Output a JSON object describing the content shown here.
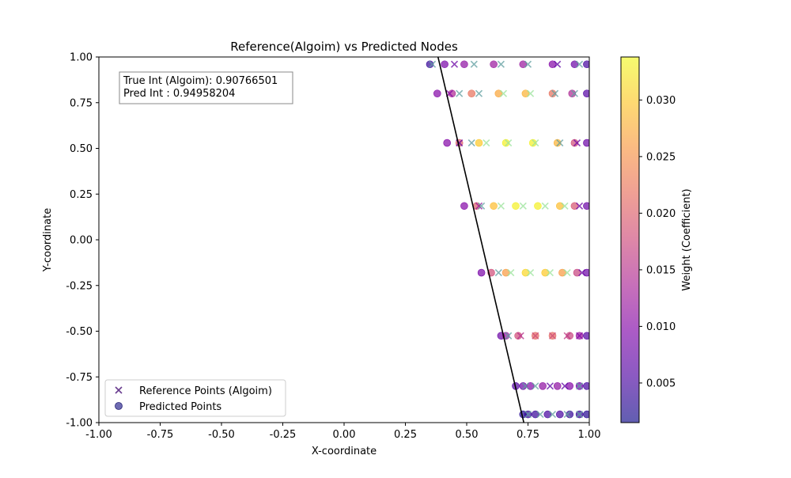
{
  "chart_data": {
    "type": "scatter",
    "title": "Reference(Algoim) vs Predicted Nodes",
    "xlabel": "X-coordinate",
    "ylabel": "Y-coordinate",
    "xlim": [
      -1.0,
      1.0
    ],
    "ylim": [
      -1.0,
      1.0
    ],
    "xticks": [
      "-1.00",
      "-0.75",
      "-0.50",
      "-0.25",
      "0.00",
      "0.25",
      "0.50",
      "0.75",
      "1.00"
    ],
    "yticks": [
      "-1.00",
      "-0.75",
      "-0.50",
      "-0.25",
      "0.00",
      "0.25",
      "0.50",
      "0.75",
      "1.00"
    ],
    "grid": false,
    "legend": {
      "placement": "lower-left",
      "entries": [
        "Reference Points (Algoim)",
        "Predicted Points"
      ]
    },
    "annotation": {
      "line1": "True Int (Algoim): 0.90766501",
      "line2": "Pred Int : 0.94958204"
    },
    "colorbar": {
      "label": "Weight (Coefficient)",
      "colormap": "plasma",
      "range": [
        0.0015,
        0.0338
      ],
      "ticks": [
        "0.005",
        "0.010",
        "0.015",
        "0.020",
        "0.025",
        "0.030"
      ],
      "tick_values": [
        0.005,
        0.01,
        0.015,
        0.02,
        0.025,
        0.03
      ]
    },
    "boundary_line": {
      "x": [
        0.383,
        0.733
      ],
      "y": [
        1.0,
        -1.0
      ],
      "color": "#000000"
    },
    "series": [
      {
        "name": "Reference Points (Algoim)",
        "marker": "x",
        "points": [
          {
            "x": 0.36,
            "y": 0.96,
            "w": 0.006
          },
          {
            "x": 0.45,
            "y": 0.96,
            "w": 0.008
          },
          {
            "x": 0.53,
            "y": 0.96,
            "w": 0.006
          },
          {
            "x": 0.64,
            "y": 0.96,
            "w": 0.005
          },
          {
            "x": 0.75,
            "y": 0.96,
            "w": 0.005
          },
          {
            "x": 0.87,
            "y": 0.96,
            "w": 0.007
          },
          {
            "x": 0.96,
            "y": 0.96,
            "w": 0.006
          },
          {
            "x": 0.43,
            "y": 0.8,
            "w": 0.01
          },
          {
            "x": 0.47,
            "y": 0.8,
            "w": 0.005
          },
          {
            "x": 0.55,
            "y": 0.8,
            "w": 0.004
          },
          {
            "x": 0.65,
            "y": 0.8,
            "w": 0.029
          },
          {
            "x": 0.76,
            "y": 0.8,
            "w": 0.03
          },
          {
            "x": 0.86,
            "y": 0.8,
            "w": 0.004
          },
          {
            "x": 0.94,
            "y": 0.8,
            "w": 0.006
          },
          {
            "x": 0.47,
            "y": 0.53,
            "w": 0.007
          },
          {
            "x": 0.52,
            "y": 0.53,
            "w": 0.004
          },
          {
            "x": 0.58,
            "y": 0.53,
            "w": 0.028
          },
          {
            "x": 0.67,
            "y": 0.53,
            "w": 0.033
          },
          {
            "x": 0.78,
            "y": 0.53,
            "w": 0.032
          },
          {
            "x": 0.88,
            "y": 0.53,
            "w": 0.005
          },
          {
            "x": 0.95,
            "y": 0.53,
            "w": 0.008
          },
          {
            "x": 0.55,
            "y": 0.185,
            "w": 0.012
          },
          {
            "x": 0.56,
            "y": 0.185,
            "w": 0.004
          },
          {
            "x": 0.64,
            "y": 0.185,
            "w": 0.033
          },
          {
            "x": 0.73,
            "y": 0.185,
            "w": 0.033
          },
          {
            "x": 0.82,
            "y": 0.185,
            "w": 0.032
          },
          {
            "x": 0.9,
            "y": 0.185,
            "w": 0.03
          },
          {
            "x": 0.96,
            "y": 0.185,
            "w": 0.008
          },
          {
            "x": 0.63,
            "y": -0.18,
            "w": 0.004
          },
          {
            "x": 0.68,
            "y": -0.18,
            "w": 0.028
          },
          {
            "x": 0.76,
            "y": -0.18,
            "w": 0.032
          },
          {
            "x": 0.84,
            "y": -0.18,
            "w": 0.031
          },
          {
            "x": 0.91,
            "y": -0.18,
            "w": 0.025
          },
          {
            "x": 0.97,
            "y": -0.18,
            "w": 0.008
          },
          {
            "x": 0.67,
            "y": -0.525,
            "w": 0.004
          },
          {
            "x": 0.72,
            "y": -0.525,
            "w": 0.015
          },
          {
            "x": 0.78,
            "y": -0.525,
            "w": 0.018
          },
          {
            "x": 0.85,
            "y": -0.525,
            "w": 0.018
          },
          {
            "x": 0.91,
            "y": -0.525,
            "w": 0.016
          },
          {
            "x": 0.96,
            "y": -0.525,
            "w": 0.01
          },
          {
            "x": 0.74,
            "y": -0.8,
            "w": 0.004
          },
          {
            "x": 0.78,
            "y": -0.8,
            "w": 0.006
          },
          {
            "x": 0.84,
            "y": -0.8,
            "w": 0.007
          },
          {
            "x": 0.9,
            "y": -0.8,
            "w": 0.007
          },
          {
            "x": 0.96,
            "y": -0.8,
            "w": 0.006
          },
          {
            "x": 0.75,
            "y": -0.955,
            "w": 0.003
          },
          {
            "x": 0.8,
            "y": -0.955,
            "w": 0.003
          },
          {
            "x": 0.85,
            "y": -0.955,
            "w": 0.003
          },
          {
            "x": 0.91,
            "y": -0.955,
            "w": 0.003
          },
          {
            "x": 0.96,
            "y": -0.955,
            "w": 0.003
          }
        ]
      },
      {
        "name": "Predicted Points",
        "marker": "o",
        "points": [
          {
            "x": 0.35,
            "y": 0.96,
            "w": 0.004
          },
          {
            "x": 0.41,
            "y": 0.96,
            "w": 0.009
          },
          {
            "x": 0.49,
            "y": 0.96,
            "w": 0.011
          },
          {
            "x": 0.61,
            "y": 0.96,
            "w": 0.012
          },
          {
            "x": 0.73,
            "y": 0.96,
            "w": 0.012
          },
          {
            "x": 0.85,
            "y": 0.96,
            "w": 0.01
          },
          {
            "x": 0.94,
            "y": 0.96,
            "w": 0.008
          },
          {
            "x": 0.99,
            "y": 0.96,
            "w": 0.005
          },
          {
            "x": 0.38,
            "y": 0.8,
            "w": 0.01
          },
          {
            "x": 0.44,
            "y": 0.8,
            "w": 0.014
          },
          {
            "x": 0.52,
            "y": 0.8,
            "w": 0.022
          },
          {
            "x": 0.63,
            "y": 0.8,
            "w": 0.027
          },
          {
            "x": 0.74,
            "y": 0.8,
            "w": 0.028
          },
          {
            "x": 0.85,
            "y": 0.8,
            "w": 0.022
          },
          {
            "x": 0.93,
            "y": 0.8,
            "w": 0.014
          },
          {
            "x": 0.99,
            "y": 0.8,
            "w": 0.006
          },
          {
            "x": 0.42,
            "y": 0.53,
            "w": 0.01
          },
          {
            "x": 0.47,
            "y": 0.53,
            "w": 0.02
          },
          {
            "x": 0.55,
            "y": 0.53,
            "w": 0.03
          },
          {
            "x": 0.66,
            "y": 0.53,
            "w": 0.033
          },
          {
            "x": 0.77,
            "y": 0.53,
            "w": 0.033
          },
          {
            "x": 0.87,
            "y": 0.53,
            "w": 0.028
          },
          {
            "x": 0.94,
            "y": 0.53,
            "w": 0.018
          },
          {
            "x": 0.99,
            "y": 0.53,
            "w": 0.008
          },
          {
            "x": 0.49,
            "y": 0.185,
            "w": 0.01
          },
          {
            "x": 0.54,
            "y": 0.185,
            "w": 0.02
          },
          {
            "x": 0.61,
            "y": 0.185,
            "w": 0.029
          },
          {
            "x": 0.7,
            "y": 0.185,
            "w": 0.033
          },
          {
            "x": 0.79,
            "y": 0.185,
            "w": 0.033
          },
          {
            "x": 0.88,
            "y": 0.185,
            "w": 0.029
          },
          {
            "x": 0.94,
            "y": 0.185,
            "w": 0.019
          },
          {
            "x": 0.99,
            "y": 0.185,
            "w": 0.008
          },
          {
            "x": 0.56,
            "y": -0.18,
            "w": 0.009
          },
          {
            "x": 0.6,
            "y": -0.18,
            "w": 0.018
          },
          {
            "x": 0.66,
            "y": -0.18,
            "w": 0.026
          },
          {
            "x": 0.74,
            "y": -0.18,
            "w": 0.031
          },
          {
            "x": 0.82,
            "y": -0.18,
            "w": 0.03
          },
          {
            "x": 0.89,
            "y": -0.18,
            "w": 0.026
          },
          {
            "x": 0.95,
            "y": -0.18,
            "w": 0.017
          },
          {
            "x": 0.99,
            "y": -0.18,
            "w": 0.008
          },
          {
            "x": 0.64,
            "y": -0.525,
            "w": 0.008
          },
          {
            "x": 0.66,
            "y": -0.525,
            "w": 0.012
          },
          {
            "x": 0.71,
            "y": -0.525,
            "w": 0.018
          },
          {
            "x": 0.78,
            "y": -0.525,
            "w": 0.021
          },
          {
            "x": 0.85,
            "y": -0.525,
            "w": 0.021
          },
          {
            "x": 0.92,
            "y": -0.525,
            "w": 0.017
          },
          {
            "x": 0.96,
            "y": -0.525,
            "w": 0.012
          },
          {
            "x": 0.99,
            "y": -0.525,
            "w": 0.006
          },
          {
            "x": 0.7,
            "y": -0.8,
            "w": 0.006
          },
          {
            "x": 0.73,
            "y": -0.8,
            "w": 0.008
          },
          {
            "x": 0.76,
            "y": -0.8,
            "w": 0.01
          },
          {
            "x": 0.81,
            "y": -0.8,
            "w": 0.011
          },
          {
            "x": 0.87,
            "y": -0.8,
            "w": 0.011
          },
          {
            "x": 0.92,
            "y": -0.8,
            "w": 0.01
          },
          {
            "x": 0.96,
            "y": -0.8,
            "w": 0.008
          },
          {
            "x": 0.99,
            "y": -0.8,
            "w": 0.005
          },
          {
            "x": 0.73,
            "y": -0.955,
            "w": 0.003
          },
          {
            "x": 0.75,
            "y": -0.955,
            "w": 0.004
          },
          {
            "x": 0.78,
            "y": -0.955,
            "w": 0.004
          },
          {
            "x": 0.83,
            "y": -0.955,
            "w": 0.005
          },
          {
            "x": 0.88,
            "y": -0.955,
            "w": 0.005
          },
          {
            "x": 0.92,
            "y": -0.955,
            "w": 0.004
          },
          {
            "x": 0.96,
            "y": -0.955,
            "w": 0.004
          },
          {
            "x": 0.99,
            "y": -0.955,
            "w": 0.003
          }
        ]
      }
    ]
  }
}
